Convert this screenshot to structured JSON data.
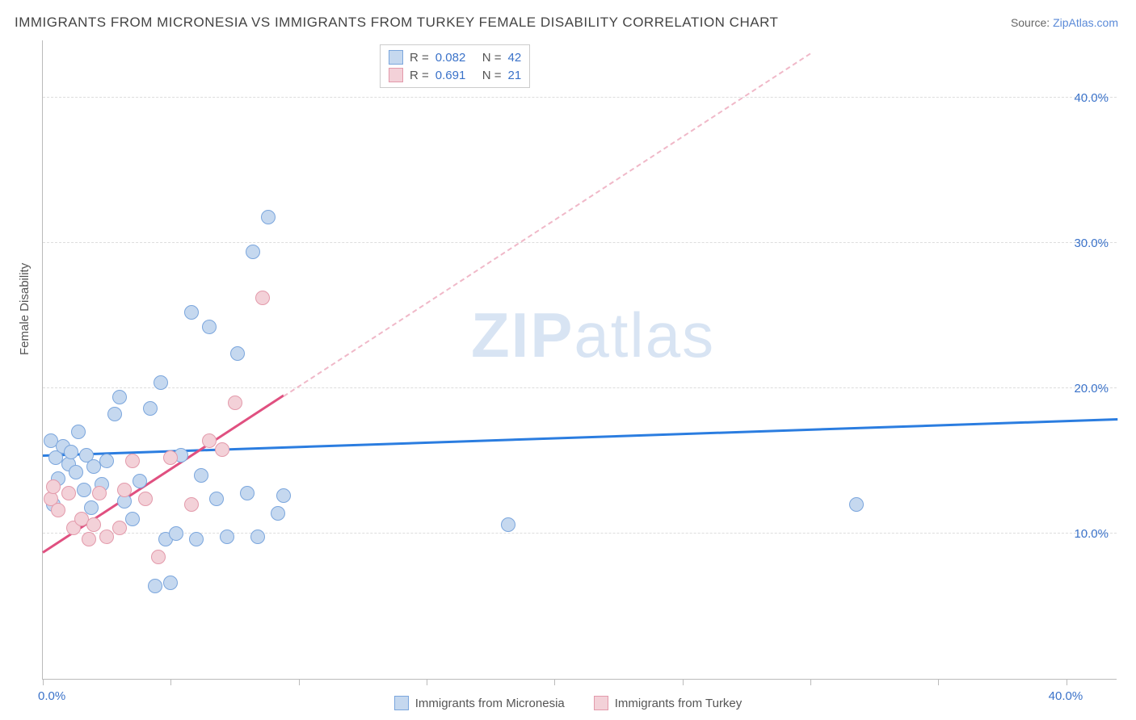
{
  "title": "IMMIGRANTS FROM MICRONESIA VS IMMIGRANTS FROM TURKEY FEMALE DISABILITY CORRELATION CHART",
  "source_label": "Source:",
  "source_name": "ZipAtlas.com",
  "y_axis_title": "Female Disability",
  "watermark_bold": "ZIP",
  "watermark_light": "atlas",
  "chart": {
    "type": "scatter",
    "xlim": [
      0,
      42
    ],
    "ylim": [
      0,
      44
    ],
    "x_ticks_at": [
      0,
      5,
      10,
      15,
      20,
      25,
      30,
      35,
      40
    ],
    "x_tick_labels": {
      "0": "0.0%",
      "40": "40.0%"
    },
    "y_gridlines": [
      10,
      20,
      30,
      40
    ],
    "y_tick_labels": {
      "10": "10.0%",
      "20": "20.0%",
      "30": "30.0%",
      "40": "40.0%"
    },
    "background_color": "#ffffff",
    "grid_color": "#dddddd",
    "axis_color": "#bbbbbb",
    "label_color": "#3a72c9",
    "point_radius": 9,
    "series": [
      {
        "name": "Immigrants from Micronesia",
        "color_fill": "#c5d8ef",
        "color_stroke": "#7ba6dd",
        "r_label": "R =",
        "r_value": "0.082",
        "n_label": "N =",
        "n_value": "42",
        "regression": {
          "x1": 0,
          "y1": 15.3,
          "x2": 42,
          "y2": 17.8,
          "color": "#2b7de0",
          "width": 3,
          "dashed": false,
          "extend_dashed": false
        },
        "points": [
          [
            0.3,
            16.4
          ],
          [
            0.5,
            15.2
          ],
          [
            0.6,
            13.8
          ],
          [
            0.8,
            16.0
          ],
          [
            1.0,
            14.8
          ],
          [
            1.1,
            15.6
          ],
          [
            1.3,
            14.2
          ],
          [
            1.4,
            17.0
          ],
          [
            1.6,
            13.0
          ],
          [
            1.7,
            15.4
          ],
          [
            1.9,
            11.8
          ],
          [
            2.0,
            14.6
          ],
          [
            2.3,
            13.4
          ],
          [
            2.5,
            15.0
          ],
          [
            2.8,
            18.2
          ],
          [
            3.0,
            19.4
          ],
          [
            3.2,
            12.2
          ],
          [
            3.5,
            11.0
          ],
          [
            3.8,
            13.6
          ],
          [
            4.2,
            18.6
          ],
          [
            4.4,
            6.4
          ],
          [
            4.6,
            20.4
          ],
          [
            4.8,
            9.6
          ],
          [
            5.0,
            6.6
          ],
          [
            5.2,
            10.0
          ],
          [
            5.4,
            15.4
          ],
          [
            5.8,
            25.2
          ],
          [
            6.0,
            9.6
          ],
          [
            6.2,
            14.0
          ],
          [
            6.5,
            24.2
          ],
          [
            6.8,
            12.4
          ],
          [
            7.2,
            9.8
          ],
          [
            7.6,
            22.4
          ],
          [
            8.0,
            12.8
          ],
          [
            8.2,
            29.4
          ],
          [
            8.4,
            9.8
          ],
          [
            8.8,
            31.8
          ],
          [
            9.2,
            11.4
          ],
          [
            9.4,
            12.6
          ],
          [
            18.2,
            10.6
          ],
          [
            31.8,
            12.0
          ],
          [
            0.4,
            12.0
          ]
        ]
      },
      {
        "name": "Immigrants from Turkey",
        "color_fill": "#f3d1d8",
        "color_stroke": "#e39aab",
        "r_label": "R =",
        "r_value": "0.691",
        "n_label": "N =",
        "n_value": "21",
        "regression": {
          "x1": 0,
          "y1": 8.6,
          "x2": 9.4,
          "y2": 19.4,
          "color": "#e05080",
          "width": 3,
          "dashed": false,
          "extend_dashed": true,
          "extend_color": "#f0b8c8",
          "extend_to_x": 30,
          "extend_to_y": 43
        },
        "points": [
          [
            0.3,
            12.4
          ],
          [
            0.4,
            13.2
          ],
          [
            0.6,
            11.6
          ],
          [
            1.0,
            12.8
          ],
          [
            1.2,
            10.4
          ],
          [
            1.5,
            11.0
          ],
          [
            1.8,
            9.6
          ],
          [
            2.0,
            10.6
          ],
          [
            2.2,
            12.8
          ],
          [
            2.5,
            9.8
          ],
          [
            3.0,
            10.4
          ],
          [
            3.2,
            13.0
          ],
          [
            3.5,
            15.0
          ],
          [
            4.0,
            12.4
          ],
          [
            4.5,
            8.4
          ],
          [
            5.0,
            15.2
          ],
          [
            5.8,
            12.0
          ],
          [
            6.5,
            16.4
          ],
          [
            7.0,
            15.8
          ],
          [
            7.5,
            19.0
          ],
          [
            8.6,
            26.2
          ]
        ]
      }
    ]
  }
}
